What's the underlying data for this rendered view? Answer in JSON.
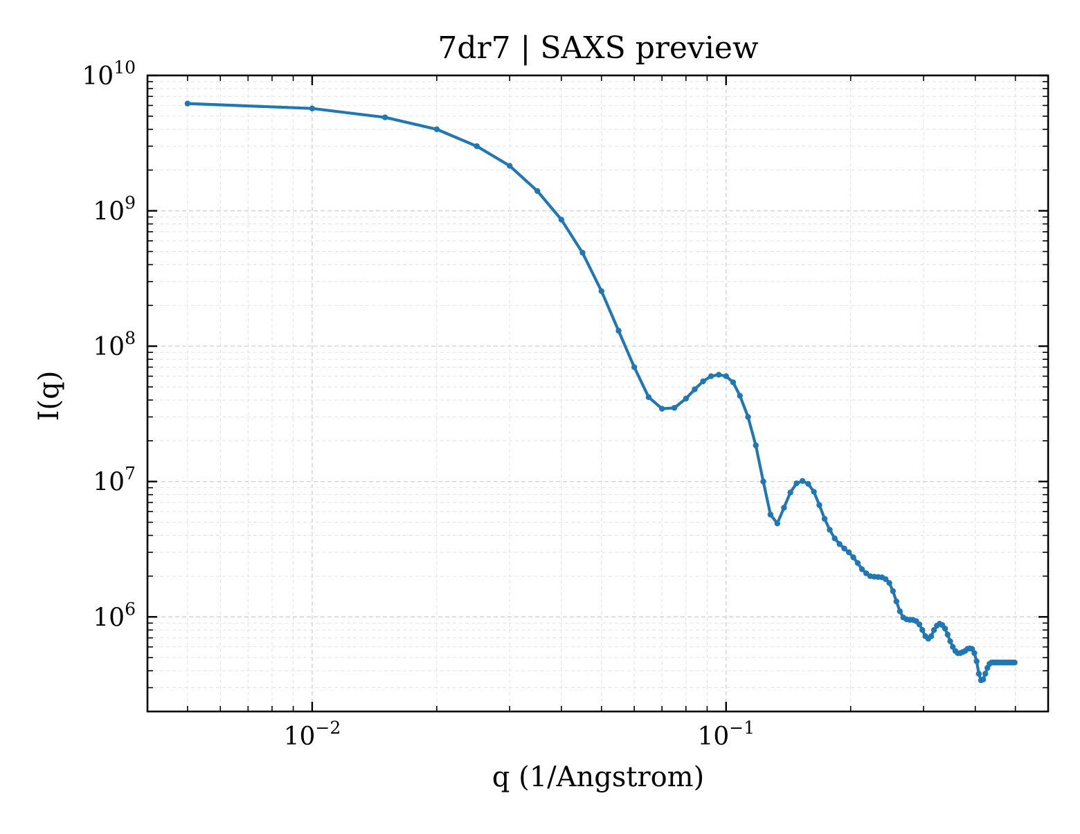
{
  "chart_data": {
    "type": "line",
    "title": "7dr7 | SAXS preview",
    "xlabel": "q (1/Angstrom)",
    "ylabel": "I(q)",
    "xscale": "log",
    "yscale": "log",
    "xlim": [
      0.004,
      0.6
    ],
    "ylim": [
      200000,
      10000000000
    ],
    "grid": true,
    "legend": "none",
    "x_ticks": [
      {
        "value": 0.01,
        "base": "10",
        "exp": "−2"
      },
      {
        "value": 0.1,
        "base": "10",
        "exp": "−1"
      }
    ],
    "y_ticks": [
      {
        "value": 1000000,
        "base": "10",
        "exp": "6"
      },
      {
        "value": 10000000,
        "base": "10",
        "exp": "7"
      },
      {
        "value": 100000000,
        "base": "10",
        "exp": "8"
      },
      {
        "value": 1000000000,
        "base": "10",
        "exp": "9"
      },
      {
        "value": 10000000000,
        "base": "10",
        "exp": "10"
      }
    ],
    "colors": {
      "line": "#1f77b4",
      "axes": "#000000"
    },
    "series": [
      {
        "x": [
          0.005,
          0.01,
          0.015,
          0.02,
          0.025,
          0.03,
          0.035,
          0.04,
          0.045,
          0.05,
          0.055,
          0.06,
          0.065,
          0.07,
          0.075,
          0.08,
          0.084,
          0.088,
          0.092,
          0.096,
          0.1,
          0.104,
          0.108,
          0.113,
          0.118,
          0.123,
          0.128,
          0.133,
          0.138,
          0.143,
          0.148,
          0.153,
          0.158,
          0.163,
          0.168,
          0.173,
          0.178,
          0.183,
          0.188,
          0.193,
          0.198,
          0.203,
          0.208,
          0.213,
          0.218,
          0.223,
          0.228,
          0.233,
          0.238,
          0.243,
          0.248,
          0.253,
          0.258,
          0.263,
          0.268,
          0.273,
          0.278,
          0.283,
          0.288,
          0.293,
          0.298,
          0.303,
          0.308,
          0.313,
          0.318,
          0.323,
          0.328,
          0.333,
          0.338,
          0.343,
          0.348,
          0.353,
          0.358,
          0.363,
          0.368,
          0.373,
          0.378,
          0.383,
          0.388,
          0.393,
          0.398,
          0.403,
          0.408,
          0.413,
          0.418,
          0.423,
          0.428,
          0.433,
          0.438,
          0.443,
          0.448,
          0.453,
          0.458,
          0.463,
          0.468,
          0.473,
          0.478,
          0.483,
          0.488,
          0.493,
          0.498
        ],
        "y": [
          6200000000,
          5700000000,
          4900000000,
          4000000000,
          3000000000,
          2150000000,
          1400000000,
          860000000,
          490000000,
          255000000,
          130000000,
          70000000,
          42000000,
          34500000,
          35000000,
          41000000,
          48000000,
          55000000,
          60000000,
          61500000,
          60000000,
          54000000,
          43000000,
          30000000,
          18500000,
          10000000,
          5700000,
          4900000,
          6400000,
          8300000,
          9700000,
          10100000,
          9600000,
          8400000,
          6700000,
          5300000,
          4400000,
          3800000,
          3450000,
          3200000,
          3000000,
          2750000,
          2500000,
          2250000,
          2100000,
          2000000,
          1980000,
          1970000,
          1960000,
          1900000,
          1780000,
          1550000,
          1300000,
          1100000,
          990000,
          960000,
          950000,
          950000,
          930000,
          880000,
          800000,
          720000,
          690000,
          720000,
          800000,
          860000,
          890000,
          870000,
          820000,
          740000,
          660000,
          600000,
          560000,
          540000,
          540000,
          550000,
          560000,
          580000,
          585000,
          580000,
          540000,
          470000,
          380000,
          340000,
          345000,
          380000,
          420000,
          450000,
          460000,
          460000,
          460000,
          460000,
          460000,
          460000,
          460000,
          460000,
          460000,
          460000,
          460000,
          460000,
          460000
        ]
      }
    ]
  }
}
